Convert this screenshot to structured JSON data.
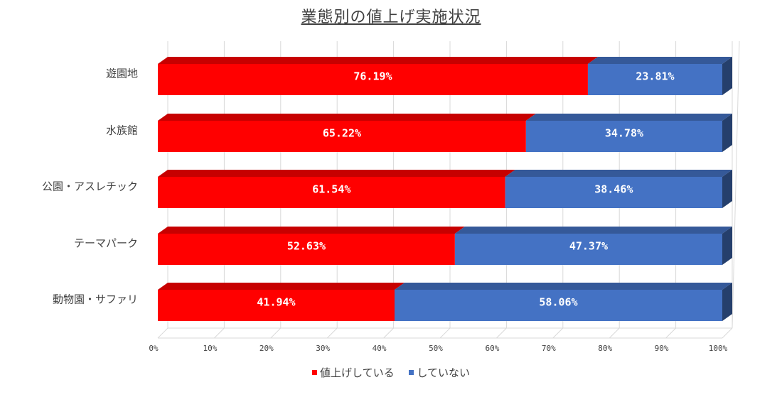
{
  "chart_data": {
    "type": "bar",
    "orientation": "horizontal",
    "stacked": true,
    "percent_stacked": true,
    "style": "3d",
    "title": "業態別の値上げ実施状況",
    "categories": [
      "遊園地",
      "水族館",
      "公園・アスレチック",
      "テーマパーク",
      "動物園・サファリ"
    ],
    "series": [
      {
        "name": "値上げしている",
        "color": "#ff0000",
        "values": [
          76.19,
          65.22,
          61.54,
          52.63,
          41.94
        ],
        "labels": [
          "76.19%",
          "65.22%",
          "61.54%",
          "52.63%",
          "41.94%"
        ]
      },
      {
        "name": "していない",
        "color": "#4472c4",
        "values": [
          23.81,
          34.78,
          38.46,
          47.37,
          58.06
        ],
        "labels": [
          "23.81%",
          "34.78%",
          "38.46%",
          "47.37%",
          "58.06%"
        ]
      }
    ],
    "xlim": [
      0,
      100
    ],
    "x_ticks": [
      "0%",
      "10%",
      "20%",
      "30%",
      "40%",
      "50%",
      "60%",
      "70%",
      "80%",
      "90%",
      "100%"
    ],
    "grid": true,
    "legend_position": "bottom"
  }
}
